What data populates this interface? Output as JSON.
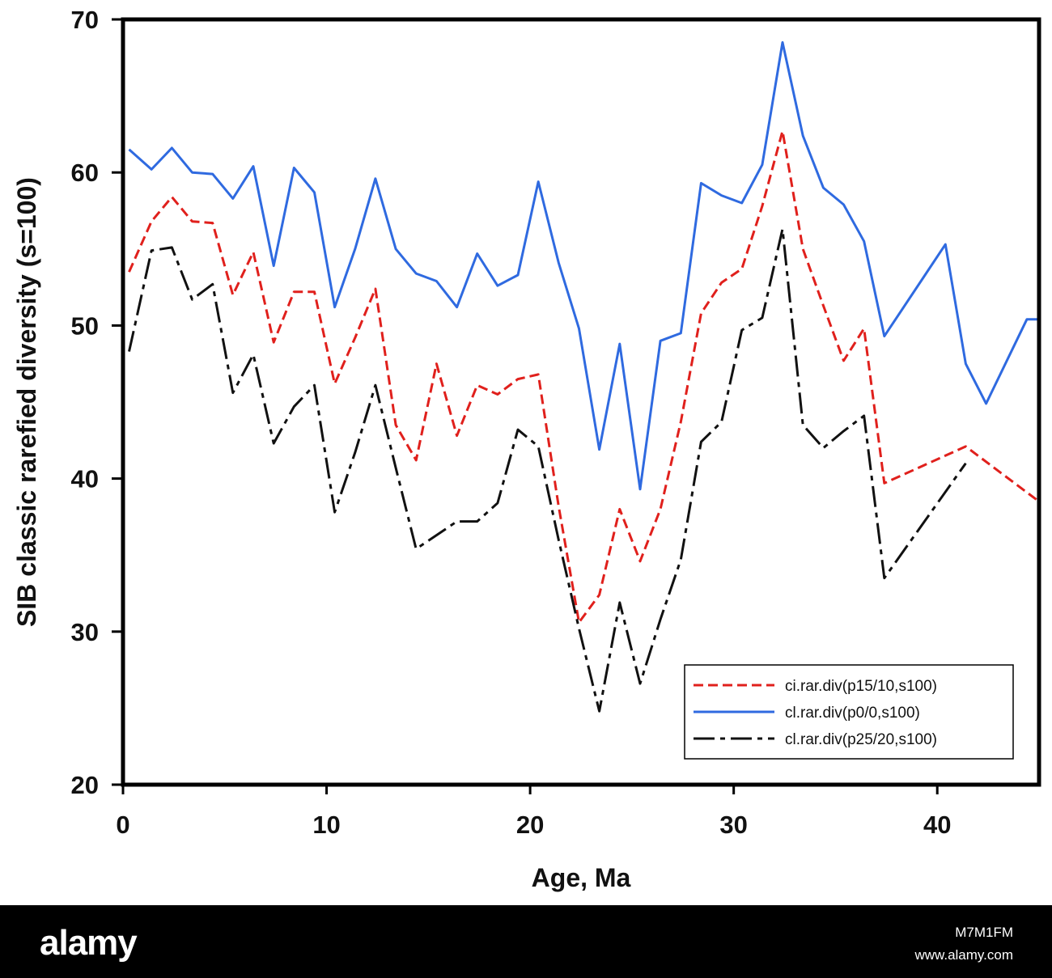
{
  "chart_data": {
    "type": "line",
    "xlabel": "Age, Ma",
    "ylabel": "SIB classic rarefied diversity (s=100)",
    "xlim": [
      0,
      45
    ],
    "ylim": [
      20,
      70
    ],
    "x_ticks": [
      "0",
      "10",
      "20",
      "30",
      "40"
    ],
    "y_ticks": [
      "20",
      "30",
      "40",
      "50",
      "60",
      "70"
    ],
    "grid": false,
    "legend_position": "bottom-right",
    "series": [
      {
        "name": "ci.rar.div(p15/10,s100)",
        "color": "#e0201c",
        "style": "dashed",
        "points": [
          [
            0.3,
            53.5
          ],
          [
            1.4,
            56.8
          ],
          [
            2.4,
            58.4
          ],
          [
            3.4,
            56.8
          ],
          [
            4.4,
            56.7
          ],
          [
            5.4,
            52.0
          ],
          [
            6.4,
            54.8
          ],
          [
            7.4,
            48.9
          ],
          [
            8.4,
            52.2
          ],
          [
            9.4,
            52.2
          ],
          [
            10.4,
            46.2
          ],
          [
            11.4,
            49.2
          ],
          [
            12.4,
            52.4
          ],
          [
            13.4,
            43.5
          ],
          [
            14.4,
            41.2
          ],
          [
            15.4,
            47.5
          ],
          [
            16.4,
            42.8
          ],
          [
            17.4,
            46.1
          ],
          [
            18.4,
            45.5
          ],
          [
            19.4,
            46.5
          ],
          [
            20.4,
            46.8
          ],
          [
            21.4,
            38.2
          ],
          [
            22.4,
            30.6
          ],
          [
            23.4,
            32.4
          ],
          [
            24.4,
            38.0
          ],
          [
            25.4,
            34.6
          ],
          [
            26.4,
            38.0
          ],
          [
            27.4,
            43.7
          ],
          [
            28.4,
            50.8
          ],
          [
            29.4,
            52.8
          ],
          [
            30.4,
            53.7
          ],
          [
            31.4,
            57.8
          ],
          [
            32.4,
            62.7
          ],
          [
            33.4,
            55.0
          ],
          [
            34.4,
            51.3
          ],
          [
            35.4,
            47.7
          ],
          [
            36.4,
            49.8
          ],
          [
            37.4,
            39.7
          ],
          [
            41.4,
            42.1
          ],
          [
            45,
            38.5
          ]
        ]
      },
      {
        "name": "cl.rar.div(p0/0,s100)",
        "color": "#2f6ae0",
        "style": "solid",
        "points": [
          [
            0.3,
            61.5
          ],
          [
            1.4,
            60.2
          ],
          [
            2.4,
            61.6
          ],
          [
            3.4,
            60.0
          ],
          [
            4.4,
            59.9
          ],
          [
            5.4,
            58.3
          ],
          [
            6.4,
            60.4
          ],
          [
            7.4,
            53.9
          ],
          [
            8.4,
            60.3
          ],
          [
            9.4,
            58.7
          ],
          [
            10.4,
            51.2
          ],
          [
            11.4,
            55.0
          ],
          [
            12.4,
            59.6
          ],
          [
            13.4,
            55.0
          ],
          [
            14.4,
            53.4
          ],
          [
            15.4,
            52.9
          ],
          [
            16.4,
            51.2
          ],
          [
            17.4,
            54.7
          ],
          [
            18.4,
            52.6
          ],
          [
            19.4,
            53.3
          ],
          [
            20.4,
            59.4
          ],
          [
            21.4,
            54.1
          ],
          [
            22.4,
            49.8
          ],
          [
            23.4,
            41.9
          ],
          [
            24.4,
            48.8
          ],
          [
            25.4,
            39.3
          ],
          [
            26.4,
            49.0
          ],
          [
            27.4,
            49.5
          ],
          [
            28.4,
            59.3
          ],
          [
            29.4,
            58.5
          ],
          [
            30.4,
            58.0
          ],
          [
            31.4,
            60.5
          ],
          [
            32.4,
            68.5
          ],
          [
            33.4,
            62.4
          ],
          [
            34.4,
            59.0
          ],
          [
            35.4,
            57.9
          ],
          [
            36.4,
            55.5
          ],
          [
            37.4,
            49.3
          ],
          [
            40.4,
            55.3
          ],
          [
            41.4,
            47.5
          ],
          [
            42.4,
            44.9
          ],
          [
            44.4,
            50.4
          ],
          [
            45,
            50.4
          ]
        ]
      },
      {
        "name": "cl.rar.div(p25/20,s100)",
        "color": "#111111",
        "style": "dashdot",
        "points": [
          [
            0.3,
            48.3
          ],
          [
            1.4,
            54.9
          ],
          [
            2.4,
            55.1
          ],
          [
            3.4,
            51.7
          ],
          [
            4.4,
            52.7
          ],
          [
            5.4,
            45.6
          ],
          [
            6.4,
            48.1
          ],
          [
            7.4,
            42.3
          ],
          [
            8.4,
            44.7
          ],
          [
            9.4,
            46.1
          ],
          [
            10.4,
            37.8
          ],
          [
            11.4,
            41.7
          ],
          [
            12.4,
            46.1
          ],
          [
            13.4,
            40.7
          ],
          [
            14.4,
            35.4
          ],
          [
            15.4,
            36.3
          ],
          [
            16.4,
            37.2
          ],
          [
            17.4,
            37.2
          ],
          [
            18.4,
            38.4
          ],
          [
            19.4,
            43.2
          ],
          [
            20.4,
            42.1
          ],
          [
            21.4,
            36.0
          ],
          [
            22.4,
            30.2
          ],
          [
            23.4,
            24.8
          ],
          [
            24.4,
            31.9
          ],
          [
            25.4,
            26.6
          ],
          [
            26.4,
            30.8
          ],
          [
            27.4,
            34.7
          ],
          [
            28.4,
            42.4
          ],
          [
            29.4,
            43.7
          ],
          [
            30.4,
            49.7
          ],
          [
            31.4,
            50.5
          ],
          [
            32.4,
            56.3
          ],
          [
            33.4,
            43.5
          ],
          [
            34.4,
            42.0
          ],
          [
            35.4,
            43.1
          ],
          [
            36.4,
            44.1
          ],
          [
            37.4,
            33.5
          ],
          [
            41.4,
            41.0
          ]
        ]
      }
    ]
  },
  "watermark": {
    "logo": "alamy",
    "image_id": "M7M1FM",
    "site": "www.alamy.com"
  }
}
